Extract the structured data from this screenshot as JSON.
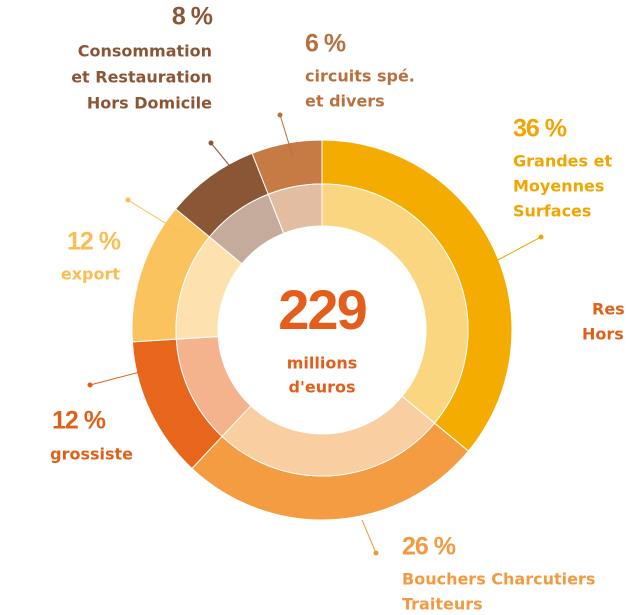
{
  "chart_data": {
    "type": "donut",
    "center_label": "229",
    "center_sub": [
      "millions",
      "d'euros"
    ],
    "categories": [
      [
        "Grandes et",
        "Moyennes",
        "Surfaces"
      ],
      [
        "Bouchers Charcutiers",
        "Traiteurs"
      ],
      [
        "grossiste"
      ],
      [
        "export"
      ],
      [
        "Consommation",
        "et Restauration",
        "Hors Domicile"
      ],
      [
        "circuits spé.",
        "et divers"
      ]
    ],
    "values": [
      36,
      26,
      12,
      12,
      8,
      6
    ],
    "value_labels": [
      "36 %",
      "26 %",
      "12 %",
      "12 %",
      "8 %",
      "6 %"
    ],
    "colors": [
      "#f5ac00",
      "#f39c42",
      "#e8661b",
      "#fbc35e",
      "#8a5636",
      "#c67a44"
    ],
    "clipped_text": [
      "Res",
      "Hors"
    ]
  }
}
